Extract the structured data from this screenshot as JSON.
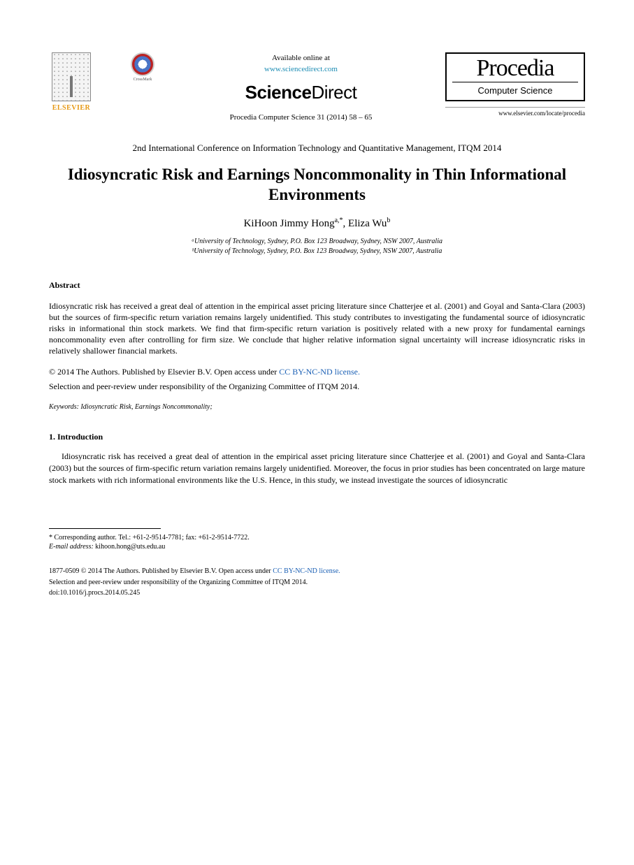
{
  "colors": {
    "link_teal": "#1a8bb3",
    "link_blue": "#1a5fb4",
    "elsevier_orange": "#e69813",
    "text": "#000000",
    "background": "#ffffff"
  },
  "header": {
    "elsevier_label": "ELSEVIER",
    "crossmark_label": "CrossMark",
    "available_at": "Available online at",
    "sciencedirect_url": "www.sciencedirect.com",
    "sciencedirect_logo_bold": "Science",
    "sciencedirect_logo_light": "Direct",
    "journal_reference": "Procedia Computer Science 31 (2014) 58 – 65",
    "procedia_title": "Procedia",
    "procedia_subtitle": "Computer Science",
    "procedia_url": "www.elsevier.com/locate/procedia"
  },
  "conference": "2nd International Conference on Information Technology and Quantitative Management, ITQM 2014",
  "title": "Idiosyncratic Risk and Earnings Noncommonality in Thin Informational Environments",
  "authors": [
    {
      "name": "KiHoon Jimmy Hong",
      "marks": "a,*"
    },
    {
      "name": "Eliza Wu",
      "marks": "b"
    }
  ],
  "affiliations": [
    "ᵃUniversity of Technology, Sydney, P.O. Box 123 Broadway, Sydney, NSW 2007, Australia",
    "ᵇUniversity of Technology, Sydney, P.O. Box 123 Broadway, Sydney, NSW 2007, Australia"
  ],
  "abstract": {
    "heading": "Abstract",
    "body": "Idiosyncratic risk has received a great deal of attention in the empirical asset pricing literature since Chatterjee et al. (2001) and Goyal and Santa-Clara (2003) but the sources of firm-specific return variation remains largely unidentified. This study contributes to investigating the fundamental source of idiosyncratic risks in informational thin stock markets. We find that firm-specific return variation is positively related with a new proxy for fundamental earnings noncommonality even after controlling for firm size. We conclude that higher relative information signal uncertainty will increase idiosyncratic risks in relatively shallower financial markets."
  },
  "license": {
    "line1": "© 2014 The Authors. Published by Elsevier B.V. Open access under ",
    "cc_text": "CC BY-NC-ND license.",
    "cc_url": "http://creativecommons.org/licenses/by-nc-nd/3.0/",
    "peer_review": "Selection and peer-review under responsibility of the Organizing Committee of ITQM 2014."
  },
  "keywords": {
    "label": "Keywords:",
    "text": "Idiosyncratic Risk, Earnings Noncommonality;"
  },
  "introduction": {
    "heading": "1. Introduction",
    "body": "Idiosyncratic risk has received a great deal of attention in the empirical asset pricing literature since Chatterjee et al. (2001) and Goyal and Santa-Clara (2003) but the sources of firm-specific return variation remains largely unidentified. Moreover, the focus in prior studies has been concentrated on large mature stock markets with rich informational environments like the U.S. Hence, in this study, we instead investigate the sources of idiosyncratic"
  },
  "footnote": {
    "corr_label": "* Corresponding author. Tel.: +61-2-9514-7781; fax: +61-2-9514-7722.",
    "email_label": "E-mail address:",
    "email": "kihoon.hong@uts.edu.au"
  },
  "footer": {
    "issn_line": "1877-0509 © 2014 The Authors. Published by Elsevier B.V. Open access under ",
    "cc_text": "CC BY-NC-ND license.",
    "cc_url": "http://creativecommons.org/licenses/by-nc-nd/3.0/",
    "peer_review": "Selection and peer-review under responsibility of the Organizing Committee of ITQM 2014.",
    "doi": "doi:10.1016/j.procs.2014.05.245"
  }
}
